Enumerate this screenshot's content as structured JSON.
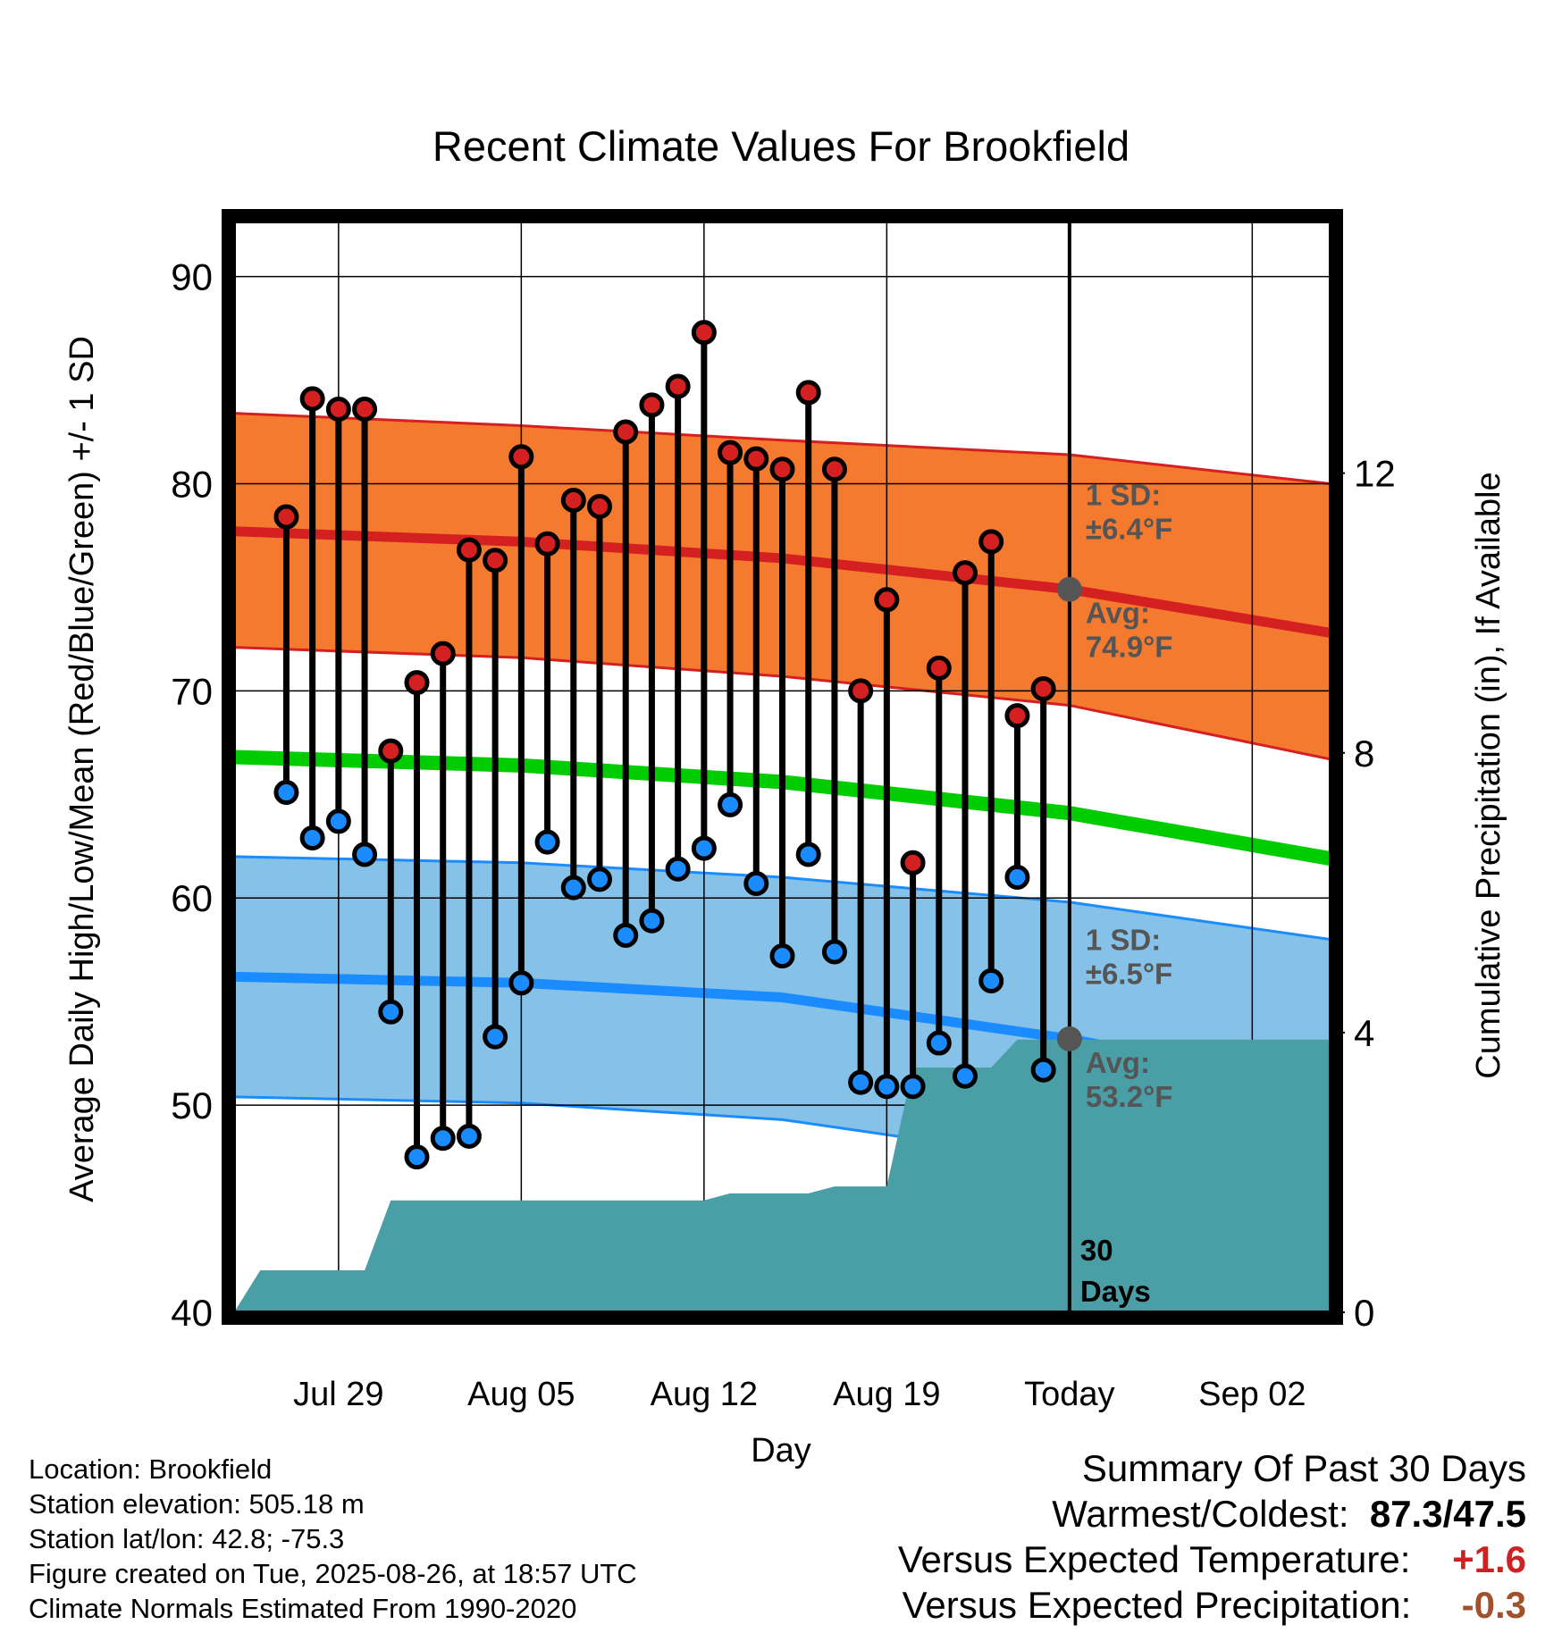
{
  "chart_data": {
    "type": "line",
    "title": "Recent Climate Values For Brookfield",
    "xlabel": "Day",
    "ylabel": "Average Daily High/Low/Mean (Red/Blue/Green) +/- 1 SD",
    "y2label": "Cumulative Precipitation (in), If Available",
    "ylim": [
      40,
      93
    ],
    "y2lim": [
      0,
      15.7
    ],
    "yticks": [
      40,
      50,
      60,
      70,
      80,
      90
    ],
    "y2ticks": [
      0,
      4,
      8,
      12
    ],
    "xlim": [
      "2025-07-25",
      "2025-09-05"
    ],
    "xticks": [
      {
        "date": "2025-07-29",
        "label": "Jul 29"
      },
      {
        "date": "2025-08-05",
        "label": "Aug 05"
      },
      {
        "date": "2025-08-12",
        "label": "Aug 12"
      },
      {
        "date": "2025-08-19",
        "label": "Aug 19"
      },
      {
        "date": "2025-08-26",
        "label": "Today"
      },
      {
        "date": "2025-09-02",
        "label": "Sep 02"
      }
    ],
    "today": "2025-08-26",
    "today_label": [
      "30",
      "Days"
    ],
    "grid": true,
    "colors": {
      "high_band": "#f47a30",
      "high_line": "#d42020",
      "low_band": "#86c2e8",
      "low_line": "#1b8cff",
      "mean_line": "#00cc00",
      "precip": "#4a9ea5",
      "high_marker": "#d42020",
      "low_marker": "#1b8cff",
      "annot_text": "#555555",
      "positive": "#cc2222",
      "negative": "#a0522d"
    },
    "normals": {
      "dates": [
        "2025-07-25",
        "2025-08-05",
        "2025-08-15",
        "2025-08-26",
        "2025-09-05"
      ],
      "high_avg": [
        77.7,
        77.2,
        76.4,
        74.9,
        72.8
      ],
      "high_upper": [
        83.4,
        82.8,
        82.1,
        81.4,
        80.0
      ],
      "high_lower": [
        72.1,
        71.6,
        70.7,
        69.3,
        66.7
      ],
      "mean": [
        66.8,
        66.4,
        65.6,
        64.1,
        61.9
      ],
      "low_avg": [
        56.2,
        55.9,
        55.2,
        53.2,
        50.8
      ],
      "low_upper": [
        62.0,
        61.7,
        61.0,
        59.8,
        58.0
      ],
      "low_lower": [
        50.4,
        50.1,
        49.3,
        47.3,
        43.3
      ]
    },
    "series": [
      {
        "name": "High",
        "x": [
          "2025-07-27",
          "2025-07-28",
          "2025-07-29",
          "2025-07-30",
          "2025-07-31",
          "2025-08-01",
          "2025-08-02",
          "2025-08-03",
          "2025-08-04",
          "2025-08-05",
          "2025-08-06",
          "2025-08-07",
          "2025-08-08",
          "2025-08-09",
          "2025-08-10",
          "2025-08-11",
          "2025-08-12",
          "2025-08-13",
          "2025-08-14",
          "2025-08-15",
          "2025-08-16",
          "2025-08-17",
          "2025-08-18",
          "2025-08-19",
          "2025-08-20",
          "2025-08-21",
          "2025-08-22",
          "2025-08-23",
          "2025-08-24",
          "2025-08-25"
        ],
        "values": [
          78.4,
          84.1,
          83.6,
          83.6,
          67.1,
          70.4,
          71.8,
          76.8,
          76.3,
          81.3,
          77.1,
          79.2,
          78.9,
          82.5,
          83.8,
          84.7,
          87.3,
          81.5,
          81.2,
          80.7,
          84.4,
          80.7,
          70.0,
          74.4,
          61.7,
          71.1,
          75.7,
          77.2,
          68.8,
          70.1
        ]
      },
      {
        "name": "Low",
        "x": [
          "2025-07-27",
          "2025-07-28",
          "2025-07-29",
          "2025-07-30",
          "2025-07-31",
          "2025-08-01",
          "2025-08-02",
          "2025-08-03",
          "2025-08-04",
          "2025-08-05",
          "2025-08-06",
          "2025-08-07",
          "2025-08-08",
          "2025-08-09",
          "2025-08-10",
          "2025-08-11",
          "2025-08-12",
          "2025-08-13",
          "2025-08-14",
          "2025-08-15",
          "2025-08-16",
          "2025-08-17",
          "2025-08-18",
          "2025-08-19",
          "2025-08-20",
          "2025-08-21",
          "2025-08-22",
          "2025-08-23",
          "2025-08-24",
          "2025-08-25"
        ],
        "values": [
          65.1,
          62.9,
          63.7,
          62.1,
          54.5,
          47.5,
          48.4,
          48.5,
          53.3,
          55.9,
          62.7,
          60.5,
          60.9,
          58.2,
          58.9,
          61.4,
          62.4,
          64.5,
          60.7,
          57.2,
          62.1,
          57.4,
          51.1,
          50.9,
          50.9,
          53.0,
          51.4,
          56.0,
          61.0,
          51.7
        ]
      }
    ],
    "precip_cumulative": {
      "x": [
        "2025-07-25",
        "2025-07-26",
        "2025-07-27",
        "2025-07-28",
        "2025-07-29",
        "2025-07-30",
        "2025-07-31",
        "2025-08-01",
        "2025-08-05",
        "2025-08-10",
        "2025-08-12",
        "2025-08-13",
        "2025-08-16",
        "2025-08-17",
        "2025-08-19",
        "2025-08-20",
        "2025-08-21",
        "2025-08-23",
        "2025-08-24",
        "2025-08-25",
        "2025-08-26",
        "2025-09-05"
      ],
      "values": [
        0.0,
        0.6,
        0.6,
        0.6,
        0.6,
        0.6,
        1.6,
        1.6,
        1.6,
        1.6,
        1.6,
        1.7,
        1.7,
        1.8,
        1.8,
        3.5,
        3.5,
        3.5,
        3.9,
        3.9,
        3.9,
        3.9
      ]
    },
    "annotations": {
      "high_sd": [
        "1 SD:",
        "±6.4°F"
      ],
      "high_avg": [
        "Avg:",
        "74.9°F"
      ],
      "low_sd": [
        "1 SD:",
        "±6.5°F"
      ],
      "low_avg": [
        "Avg:",
        "53.2°F"
      ]
    }
  },
  "info": {
    "location": "Location: Brookfield",
    "elevation": "Station elevation: 505.18 m",
    "latlon": "Station lat/lon: 42.8; -75.3",
    "created": "Figure created on Tue, 2025-08-26, at 18:57 UTC",
    "normals": "Climate Normals Estimated From 1990-2020"
  },
  "summary": {
    "title": "Summary Of Past 30 Days",
    "warm_cold_label": "Warmest/Coldest:",
    "warm_cold_value": "87.3/47.5",
    "temp_label": "Versus Expected Temperature:",
    "temp_value": "+1.6",
    "precip_label": "Versus Expected Precipitation:",
    "precip_value": "-0.3"
  }
}
